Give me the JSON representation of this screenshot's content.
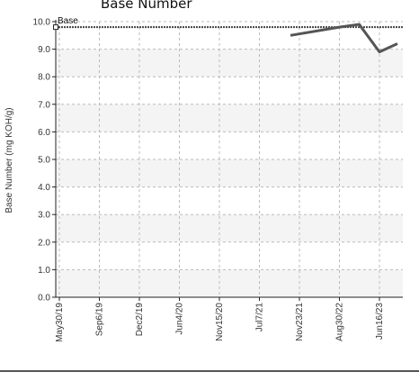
{
  "chart_data": {
    "type": "line",
    "title": "Base Number",
    "xlabel": "",
    "ylabel": "Base Number (mg KOH/g)",
    "ylim": [
      0,
      10
    ],
    "yticks": [
      "0.0",
      "1.0",
      "2.0",
      "3.0",
      "4.0",
      "5.0",
      "6.0",
      "7.0",
      "8.0",
      "9.0",
      "10.0"
    ],
    "xticks": [
      "May30/19",
      "Sep6/19",
      "Dec2/19",
      "Jun4/20",
      "Nov15/20",
      "Jul7/21",
      "Nov23/21",
      "Aug30/22",
      "Jun16/23"
    ],
    "grid": true,
    "reference": {
      "label": "Base",
      "value": 9.8
    },
    "series": [
      {
        "values": [
          {
            "x": "Nov23/21",
            "y": 9.5
          },
          {
            "x": "Aug30/22",
            "y": 9.8
          },
          {
            "x": "Aug30/22",
            "y": 9.9
          },
          {
            "x": "Jun16/23",
            "y": 8.9
          },
          {
            "x": "Jun16/23",
            "y": 9.2
          }
        ]
      }
    ],
    "colors": {
      "series": "#555555",
      "reference": "#444444",
      "band": "#f4f4f4",
      "grid": "#bbbbbb"
    }
  }
}
